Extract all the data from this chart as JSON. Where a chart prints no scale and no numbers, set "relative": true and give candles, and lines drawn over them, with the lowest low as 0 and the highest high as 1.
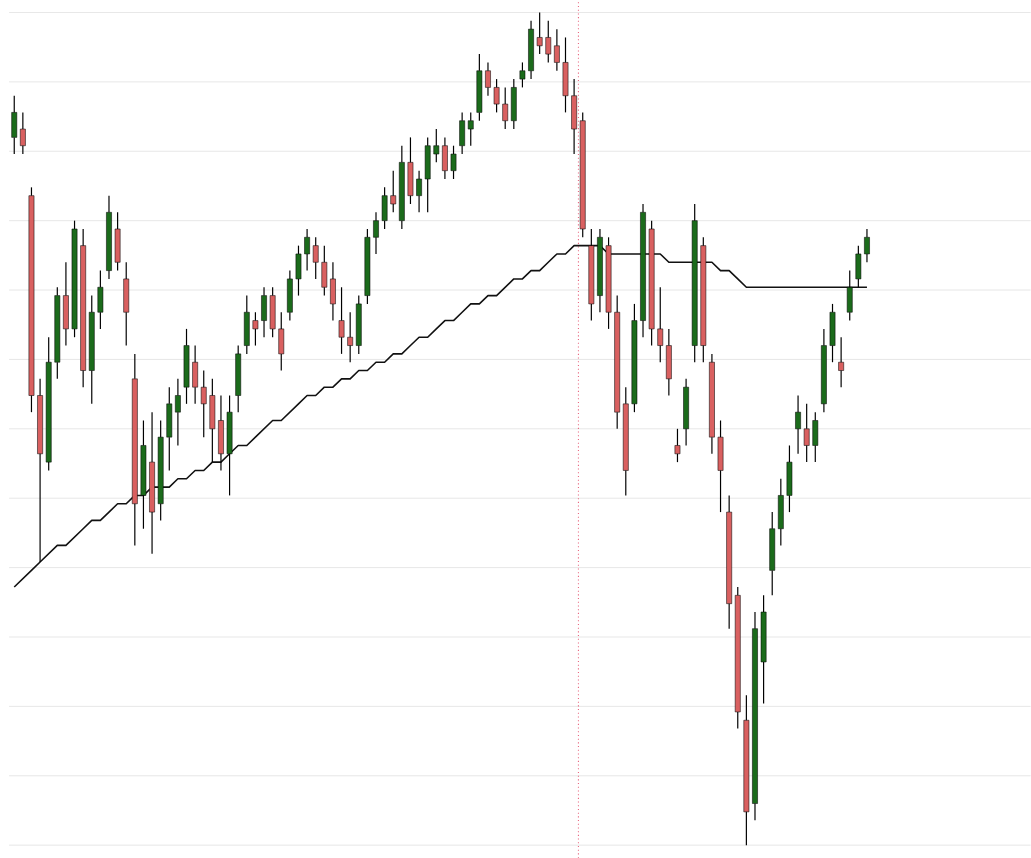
{
  "chart_data": {
    "type": "candlestick",
    "relative": true,
    "grid": "y",
    "categories": [
      null,
      null,
      null,
      null,
      null,
      null,
      null,
      null,
      null,
      null,
      null,
      null,
      null,
      null,
      null,
      null,
      null,
      null,
      null,
      null,
      null,
      null,
      null,
      null,
      null,
      null,
      null,
      null,
      null,
      null,
      null,
      null,
      null,
      null,
      null,
      null,
      null,
      null,
      null,
      null,
      null,
      null,
      null,
      null,
      null,
      null,
      null,
      null,
      null,
      null,
      null,
      null,
      null,
      null,
      null,
      null,
      null,
      null,
      null,
      null,
      null,
      null,
      null,
      null,
      null,
      null,
      null,
      null,
      null,
      null,
      null,
      null,
      null,
      null,
      null,
      null,
      null,
      null,
      null,
      null,
      null,
      null,
      null,
      null,
      null,
      null,
      null,
      null,
      null,
      null,
      null,
      null,
      null,
      null,
      null,
      null,
      null,
      null,
      null,
      null
    ],
    "ohlc": [
      [
        0.85,
        0.9,
        0.83,
        0.88
      ],
      [
        0.86,
        0.88,
        0.83,
        0.84
      ],
      [
        0.78,
        0.79,
        0.52,
        0.54
      ],
      [
        0.54,
        0.56,
        0.34,
        0.47
      ],
      [
        0.46,
        0.61,
        0.45,
        0.58
      ],
      [
        0.58,
        0.67,
        0.56,
        0.66
      ],
      [
        0.66,
        0.7,
        0.6,
        0.62
      ],
      [
        0.62,
        0.75,
        0.61,
        0.74
      ],
      [
        0.72,
        0.74,
        0.55,
        0.57
      ],
      [
        0.57,
        0.66,
        0.53,
        0.64
      ],
      [
        0.64,
        0.69,
        0.62,
        0.67
      ],
      [
        0.69,
        0.78,
        0.68,
        0.76
      ],
      [
        0.74,
        0.76,
        0.69,
        0.7
      ],
      [
        0.68,
        0.7,
        0.6,
        0.64
      ],
      [
        0.56,
        0.59,
        0.36,
        0.41
      ],
      [
        0.42,
        0.51,
        0.38,
        0.48
      ],
      [
        0.46,
        0.52,
        0.35,
        0.4
      ],
      [
        0.41,
        0.51,
        0.39,
        0.49
      ],
      [
        0.49,
        0.55,
        0.45,
        0.53
      ],
      [
        0.52,
        0.56,
        0.48,
        0.54
      ],
      [
        0.55,
        0.62,
        0.53,
        0.6
      ],
      [
        0.58,
        0.6,
        0.53,
        0.55
      ],
      [
        0.55,
        0.57,
        0.49,
        0.53
      ],
      [
        0.54,
        0.56,
        0.46,
        0.5
      ],
      [
        0.51,
        0.54,
        0.45,
        0.47
      ],
      [
        0.47,
        0.54,
        0.42,
        0.52
      ],
      [
        0.54,
        0.6,
        0.52,
        0.59
      ],
      [
        0.6,
        0.66,
        0.59,
        0.64
      ],
      [
        0.63,
        0.64,
        0.6,
        0.62
      ],
      [
        0.63,
        0.67,
        0.61,
        0.66
      ],
      [
        0.66,
        0.67,
        0.61,
        0.62
      ],
      [
        0.62,
        0.64,
        0.57,
        0.59
      ],
      [
        0.64,
        0.69,
        0.63,
        0.68
      ],
      [
        0.68,
        0.72,
        0.66,
        0.71
      ],
      [
        0.71,
        0.74,
        0.69,
        0.73
      ],
      [
        0.72,
        0.73,
        0.68,
        0.7
      ],
      [
        0.7,
        0.72,
        0.66,
        0.67
      ],
      [
        0.68,
        0.7,
        0.63,
        0.65
      ],
      [
        0.63,
        0.67,
        0.59,
        0.61
      ],
      [
        0.61,
        0.64,
        0.58,
        0.6
      ],
      [
        0.6,
        0.66,
        0.59,
        0.65
      ],
      [
        0.66,
        0.74,
        0.65,
        0.73
      ],
      [
        0.73,
        0.76,
        0.71,
        0.75
      ],
      [
        0.75,
        0.79,
        0.74,
        0.78
      ],
      [
        0.78,
        0.81,
        0.76,
        0.77
      ],
      [
        0.75,
        0.84,
        0.74,
        0.82
      ],
      [
        0.82,
        0.85,
        0.77,
        0.78
      ],
      [
        0.78,
        0.81,
        0.76,
        0.8
      ],
      [
        0.8,
        0.85,
        0.76,
        0.84
      ],
      [
        0.83,
        0.86,
        0.82,
        0.84
      ],
      [
        0.84,
        0.85,
        0.8,
        0.81
      ],
      [
        0.81,
        0.84,
        0.8,
        0.83
      ],
      [
        0.84,
        0.88,
        0.83,
        0.87
      ],
      [
        0.86,
        0.88,
        0.84,
        0.87
      ],
      [
        0.88,
        0.95,
        0.87,
        0.93
      ],
      [
        0.93,
        0.94,
        0.9,
        0.91
      ],
      [
        0.91,
        0.92,
        0.88,
        0.89
      ],
      [
        0.89,
        0.91,
        0.86,
        0.87
      ],
      [
        0.87,
        0.92,
        0.86,
        0.91
      ],
      [
        0.92,
        0.94,
        0.91,
        0.93
      ],
      [
        0.93,
        0.99,
        0.92,
        0.98
      ],
      [
        0.97,
        1.0,
        0.95,
        0.96
      ],
      [
        0.97,
        0.99,
        0.94,
        0.95
      ],
      [
        0.96,
        0.98,
        0.93,
        0.94
      ],
      [
        0.94,
        0.97,
        0.88,
        0.9
      ],
      [
        0.9,
        0.92,
        0.83,
        0.86
      ],
      [
        0.87,
        0.88,
        0.73,
        0.74
      ],
      [
        0.72,
        0.74,
        0.63,
        0.65
      ],
      [
        0.66,
        0.74,
        0.64,
        0.73
      ],
      [
        0.72,
        0.73,
        0.62,
        0.64
      ],
      [
        0.64,
        0.66,
        0.5,
        0.52
      ],
      [
        0.53,
        0.55,
        0.42,
        0.45
      ],
      [
        0.53,
        0.65,
        0.52,
        0.63
      ],
      [
        0.63,
        0.77,
        0.61,
        0.76
      ],
      [
        0.74,
        0.75,
        0.6,
        0.62
      ],
      [
        0.62,
        0.67,
        0.58,
        0.6
      ],
      [
        0.6,
        0.62,
        0.54,
        0.56
      ],
      [
        0.48,
        0.5,
        0.46,
        0.47
      ],
      [
        0.5,
        0.56,
        0.48,
        0.55
      ],
      [
        0.6,
        0.77,
        0.58,
        0.75
      ],
      [
        0.72,
        0.73,
        0.58,
        0.6
      ],
      [
        0.58,
        0.59,
        0.47,
        0.49
      ],
      [
        0.49,
        0.51,
        0.4,
        0.45
      ],
      [
        0.4,
        0.42,
        0.26,
        0.29
      ],
      [
        0.3,
        0.31,
        0.14,
        0.16
      ],
      [
        0.15,
        0.18,
        0.0,
        0.04
      ],
      [
        0.05,
        0.28,
        0.03,
        0.26
      ],
      [
        0.22,
        0.3,
        0.17,
        0.28
      ],
      [
        0.33,
        0.4,
        0.3,
        0.38
      ],
      [
        0.38,
        0.44,
        0.36,
        0.42
      ],
      [
        0.42,
        0.48,
        0.4,
        0.46
      ],
      [
        0.5,
        0.54,
        0.47,
        0.52
      ],
      [
        0.5,
        0.53,
        0.46,
        0.48
      ],
      [
        0.48,
        0.52,
        0.46,
        0.51
      ],
      [
        0.53,
        0.62,
        0.52,
        0.6
      ],
      [
        0.6,
        0.65,
        0.58,
        0.64
      ],
      [
        0.58,
        0.61,
        0.55,
        0.57
      ],
      [
        0.64,
        0.69,
        0.63,
        0.67
      ],
      [
        0.68,
        0.72,
        0.67,
        0.71
      ],
      [
        0.71,
        0.74,
        0.7,
        0.73
      ]
    ],
    "colors": [
      "#1b6b1b",
      "#d96060",
      "#d96060",
      "#d96060",
      "#1b6b1b",
      "#1b6b1b",
      "#d96060",
      "#1b6b1b",
      "#d96060",
      "#1b6b1b",
      "#1b6b1b",
      "#1b6b1b",
      "#d96060",
      "#d96060",
      "#d96060",
      "#1b6b1b",
      "#d96060",
      "#1b6b1b",
      "#1b6b1b",
      "#1b6b1b",
      "#1b6b1b",
      "#d96060",
      "#d96060",
      "#d96060",
      "#d96060",
      "#1b6b1b",
      "#1b6b1b",
      "#1b6b1b",
      "#d96060",
      "#1b6b1b",
      "#d96060",
      "#d96060",
      "#1b6b1b",
      "#1b6b1b",
      "#1b6b1b",
      "#d96060",
      "#d96060",
      "#d96060",
      "#d96060",
      "#d96060",
      "#1b6b1b",
      "#1b6b1b",
      "#1b6b1b",
      "#1b6b1b",
      "#d96060",
      "#1b6b1b",
      "#d96060",
      "#1b6b1b",
      "#1b6b1b",
      "#1b6b1b",
      "#d96060",
      "#1b6b1b",
      "#1b6b1b",
      "#1b6b1b",
      "#1b6b1b",
      "#d96060",
      "#d96060",
      "#d96060",
      "#1b6b1b",
      "#1b6b1b",
      "#1b6b1b",
      "#d96060",
      "#d96060",
      "#d96060",
      "#d96060",
      "#d96060",
      "#d96060",
      "#d96060",
      "#1b6b1b",
      "#d96060",
      "#d96060",
      "#d96060",
      "#1b6b1b",
      "#1b6b1b",
      "#d96060",
      "#d96060",
      "#d96060",
      "#d96060",
      "#1b6b1b",
      "#1b6b1b",
      "#d96060",
      "#d96060",
      "#d96060",
      "#d96060",
      "#d96060",
      "#d96060",
      "#1b6b1b",
      "#1b6b1b",
      "#1b6b1b",
      "#1b6b1b",
      "#1b6b1b",
      "#1b6b1b",
      "#d96060",
      "#1b6b1b",
      "#1b6b1b",
      "#1b6b1b",
      "#d96060",
      "#1b6b1b",
      "#1b6b1b",
      "#1b6b1b"
    ],
    "series": [
      {
        "type": "line",
        "color": "#111111",
        "values": [
          0.31,
          0.32,
          0.33,
          0.34,
          0.35,
          0.36,
          0.36,
          0.37,
          0.38,
          0.39,
          0.39,
          0.4,
          0.41,
          0.41,
          0.42,
          0.42,
          0.43,
          0.43,
          0.43,
          0.44,
          0.44,
          0.45,
          0.45,
          0.46,
          0.46,
          0.47,
          0.48,
          0.48,
          0.49,
          0.5,
          0.51,
          0.51,
          0.52,
          0.53,
          0.54,
          0.54,
          0.55,
          0.55,
          0.56,
          0.56,
          0.57,
          0.57,
          0.58,
          0.58,
          0.59,
          0.59,
          0.6,
          0.61,
          0.61,
          0.62,
          0.63,
          0.63,
          0.64,
          0.65,
          0.65,
          0.66,
          0.66,
          0.67,
          0.68,
          0.68,
          0.69,
          0.69,
          0.7,
          0.71,
          0.71,
          0.72,
          0.72,
          0.72,
          0.72,
          0.71,
          0.71,
          0.71,
          0.71,
          0.71,
          0.71,
          0.71,
          0.7,
          0.7,
          0.7,
          0.7,
          0.7,
          0.7,
          0.69,
          0.69,
          0.68,
          0.67,
          0.67,
          0.67,
          0.67,
          0.67,
          0.67,
          0.67,
          0.67,
          0.67,
          0.67,
          0.67,
          0.67,
          0.67,
          0.67,
          0.67
        ]
      }
    ]
  }
}
